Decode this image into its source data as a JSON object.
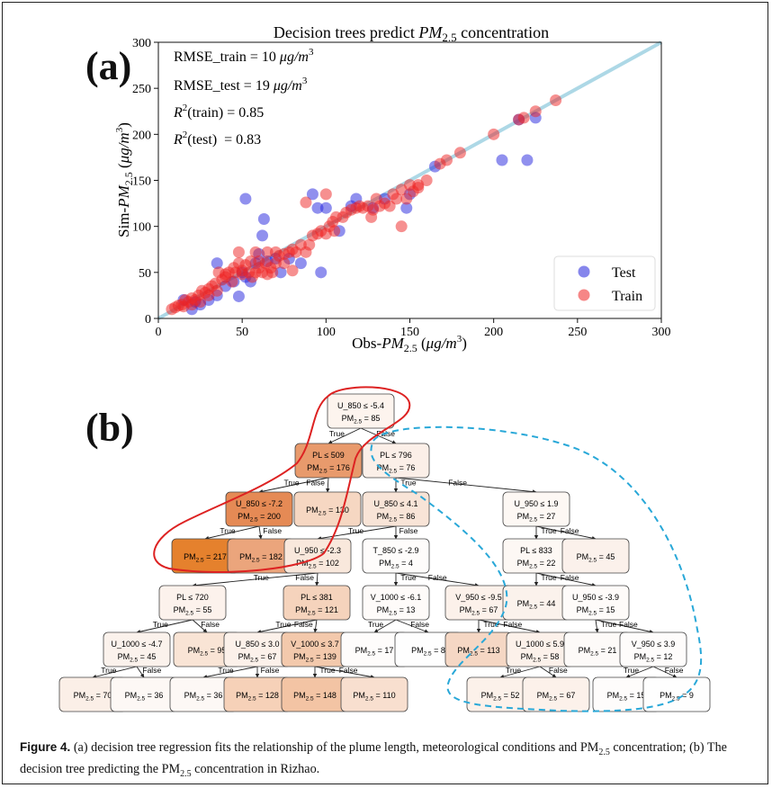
{
  "panel_labels": {
    "a": "(a)",
    "b": "(b)"
  },
  "chart_data": {
    "type": "scatter",
    "title": "Decision trees predict PM2.5 concentration",
    "xlabel": "Obs-PM2.5 (μg/m³)",
    "ylabel": "Sim-PM2.5 (μg/m³)",
    "xlim": [
      0,
      300
    ],
    "ylim": [
      0,
      300
    ],
    "xticks": [
      0,
      50,
      100,
      150,
      200,
      250,
      300
    ],
    "yticks": [
      0,
      50,
      100,
      150,
      200,
      250,
      300
    ],
    "grid": false,
    "legend": "bottom-right",
    "annotations": [
      "RMSE_train = 10 μg/m³",
      "RMSE_test = 19 μg/m³",
      "R²(train) = 0.85",
      "R²(test) = 0.83"
    ],
    "identity_line": {
      "x": [
        0,
        300
      ],
      "y": [
        0,
        300
      ],
      "color": "#add8e6"
    },
    "series": [
      {
        "name": "Test",
        "color": "#2222dd",
        "points": [
          [
            15,
            20
          ],
          [
            20,
            10
          ],
          [
            22,
            18
          ],
          [
            25,
            15
          ],
          [
            30,
            20
          ],
          [
            35,
            25
          ],
          [
            35,
            60
          ],
          [
            40,
            35
          ],
          [
            45,
            40
          ],
          [
            48,
            24
          ],
          [
            50,
            50
          ],
          [
            52,
            45
          ],
          [
            55,
            40
          ],
          [
            58,
            60
          ],
          [
            60,
            70
          ],
          [
            62,
            90
          ],
          [
            63,
            108
          ],
          [
            65,
            62
          ],
          [
            70,
            65
          ],
          [
            73,
            50
          ],
          [
            78,
            65
          ],
          [
            85,
            60
          ],
          [
            92,
            135
          ],
          [
            95,
            120
          ],
          [
            97,
            50
          ],
          [
            100,
            120
          ],
          [
            108,
            95
          ],
          [
            115,
            122
          ],
          [
            118,
            130
          ],
          [
            128,
            120
          ],
          [
            135,
            130
          ],
          [
            150,
            135
          ],
          [
            148,
            120
          ],
          [
            165,
            165
          ],
          [
            205,
            172
          ],
          [
            220,
            172
          ],
          [
            215,
            216
          ],
          [
            225,
            218
          ],
          [
            52,
            130
          ]
        ]
      },
      {
        "name": "Train",
        "color": "#ee2222",
        "points": [
          [
            8,
            10
          ],
          [
            10,
            12
          ],
          [
            12,
            14
          ],
          [
            14,
            15
          ],
          [
            15,
            13
          ],
          [
            16,
            20
          ],
          [
            18,
            18
          ],
          [
            20,
            15
          ],
          [
            20,
            22
          ],
          [
            22,
            20
          ],
          [
            24,
            25
          ],
          [
            25,
            18
          ],
          [
            26,
            30
          ],
          [
            28,
            28
          ],
          [
            30,
            25
          ],
          [
            30,
            32
          ],
          [
            32,
            35
          ],
          [
            34,
            38
          ],
          [
            35,
            30
          ],
          [
            36,
            50
          ],
          [
            38,
            42
          ],
          [
            40,
            45
          ],
          [
            40,
            48
          ],
          [
            42,
            50
          ],
          [
            44,
            40
          ],
          [
            45,
            55
          ],
          [
            46,
            50
          ],
          [
            48,
            60
          ],
          [
            48,
            72
          ],
          [
            50,
            52
          ],
          [
            50,
            48
          ],
          [
            52,
            58
          ],
          [
            54,
            50
          ],
          [
            55,
            62
          ],
          [
            56,
            45
          ],
          [
            58,
            50
          ],
          [
            58,
            72
          ],
          [
            60,
            55
          ],
          [
            60,
            62
          ],
          [
            62,
            50
          ],
          [
            64,
            60
          ],
          [
            65,
            48
          ],
          [
            65,
            72
          ],
          [
            67,
            55
          ],
          [
            68,
            50
          ],
          [
            70,
            60
          ],
          [
            70,
            72
          ],
          [
            72,
            68
          ],
          [
            75,
            70
          ],
          [
            75,
            60
          ],
          [
            78,
            72
          ],
          [
            80,
            75
          ],
          [
            80,
            52
          ],
          [
            82,
            72
          ],
          [
            85,
            80
          ],
          [
            88,
            72
          ],
          [
            90,
            80
          ],
          [
            92,
            90
          ],
          [
            95,
            92
          ],
          [
            97,
            95
          ],
          [
            100,
            92
          ],
          [
            102,
            100
          ],
          [
            104,
            105
          ],
          [
            105,
            95
          ],
          [
            106,
            110
          ],
          [
            110,
            110
          ],
          [
            112,
            115
          ],
          [
            115,
            118
          ],
          [
            118,
            120
          ],
          [
            120,
            122
          ],
          [
            122,
            120
          ],
          [
            125,
            122
          ],
          [
            128,
            118
          ],
          [
            130,
            130
          ],
          [
            132,
            122
          ],
          [
            135,
            125
          ],
          [
            138,
            122
          ],
          [
            140,
            135
          ],
          [
            142,
            130
          ],
          [
            145,
            140
          ],
          [
            148,
            130
          ],
          [
            150,
            145
          ],
          [
            152,
            138
          ],
          [
            155,
            142
          ],
          [
            145,
            100
          ],
          [
            127,
            110
          ],
          [
            155,
            145
          ],
          [
            160,
            150
          ],
          [
            168,
            168
          ],
          [
            172,
            172
          ],
          [
            180,
            180
          ],
          [
            200,
            200
          ],
          [
            215,
            216
          ],
          [
            218,
            218
          ],
          [
            225,
            225
          ],
          [
            237,
            237
          ],
          [
            100,
            135
          ],
          [
            88,
            126
          ]
        ]
      }
    ]
  },
  "tree": {
    "n_root": "U_850 ≤ -5.4",
    "v_root": "= 85",
    "n_pl509": "PL ≤ 509",
    "v_pl509": "= 176",
    "n_pl796": "PL ≤ 796",
    "v_pl796": "= 76",
    "n_u72": "U_850 ≤ -7.2",
    "v_u72": "= 200",
    "v_130": "= 130",
    "n_u41": "U_850 ≤ 4.1",
    "v_u41": "= 86",
    "n_u19": "U_950 ≤ 1.9",
    "v_u19": "= 27",
    "v_217": "= 217",
    "v_182": "= 182",
    "n_u23": "U_950 ≤ -2.3",
    "v_u23": "= 102",
    "n_t29": "T_850 ≤ -2.9",
    "v_t29": "= 4",
    "n_pl833": "PL ≤ 833",
    "v_pl833": "= 22",
    "v_45": "= 45",
    "n_pl720": "PL ≤ 720",
    "v_pl720": "= 55",
    "n_pl381": "PL ≤ 381",
    "v_pl381": "= 121",
    "n_v61": "V_1000 ≤ -6.1",
    "v_v61": "= 13",
    "n_v95": "V_950 ≤ -9.5",
    "v_v95": "= 67",
    "v_44": "= 44",
    "n_u39": "U_950 ≤ -3.9",
    "v_u39": "= 15",
    "n_u47": "U_1000 ≤ -4.7",
    "v_u47": "= 45",
    "v_95": "= 95",
    "n_u30": "U_850 ≤ 3.0",
    "v_u30": "= 67",
    "n_v37": "V_1000 ≤ 3.7",
    "v_v37": "= 139",
    "v_17": "= 17",
    "v_8": "= 8",
    "v_113": "= 113",
    "n_u59": "U_1000 ≤ 5.9",
    "v_u59": "= 58",
    "v_21": "= 21",
    "n_v39": "V_950 ≤ 3.9",
    "v_v39": "= 12",
    "v_70": "= 70",
    "v_36a": "= 36",
    "v_36b": "= 36",
    "v_128": "= 128",
    "v_148": "= 148",
    "v_110": "= 110",
    "v_52": "= 52",
    "v_67": "= 67",
    "v_15": "= 15",
    "v_9": "= 9",
    "pm_label": "PM",
    "pm_sub": "2.5",
    "true_label": "True",
    "false_label": "False"
  },
  "caption": {
    "lead": "Figure 4.",
    "text1": " (a) decision tree regression fits the relationship of the plume length, meteorological conditions and PM",
    "sub1": "2.5",
    "text2": " concentration; (b) The decision tree predicting the PM",
    "sub2": "2.5",
    "text3": " concentration in Rizhao."
  }
}
